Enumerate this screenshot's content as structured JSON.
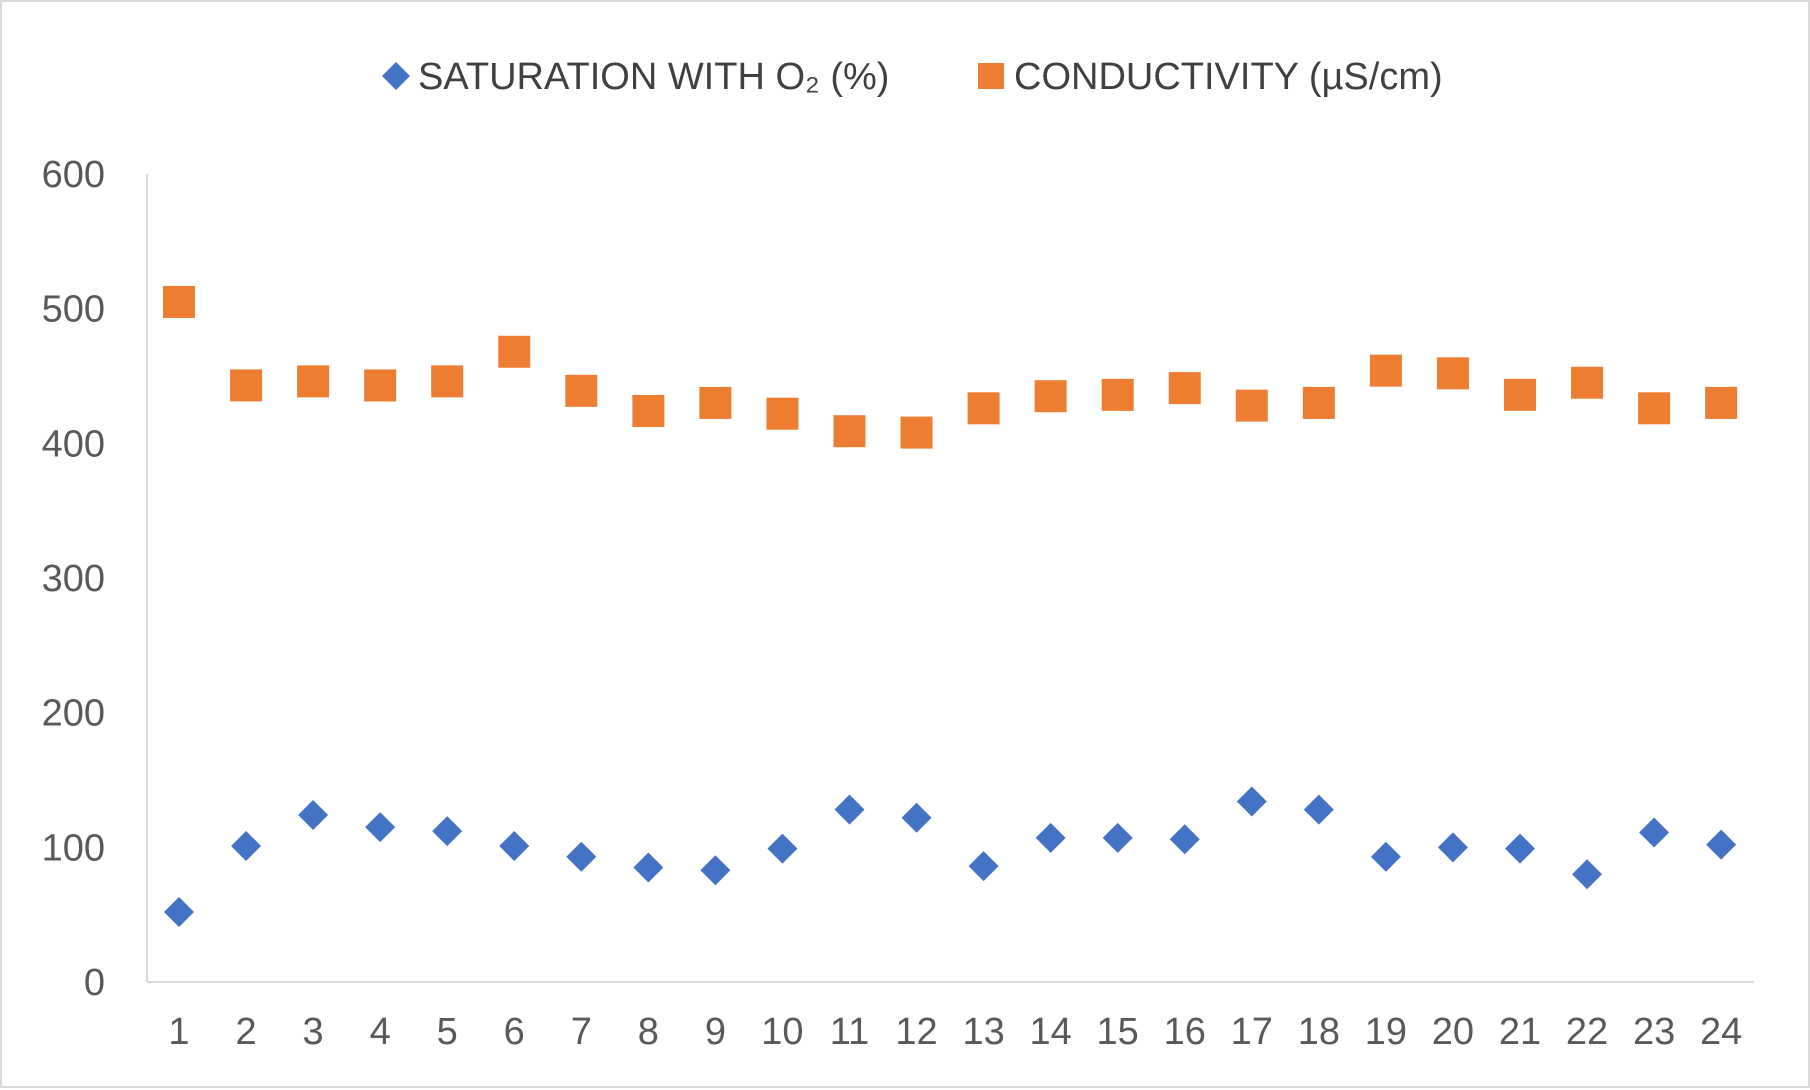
{
  "chart_data": {
    "type": "scatter",
    "x": [
      1,
      2,
      3,
      4,
      5,
      6,
      7,
      8,
      9,
      10,
      11,
      12,
      13,
      14,
      15,
      16,
      17,
      18,
      19,
      20,
      21,
      22,
      23,
      24
    ],
    "categories": [
      "1",
      "2",
      "3",
      "4",
      "5",
      "6",
      "7",
      "8",
      "9",
      "10",
      "11",
      "12",
      "13",
      "14",
      "15",
      "16",
      "17",
      "18",
      "19",
      "20",
      "21",
      "22",
      "23",
      "24"
    ],
    "series": [
      {
        "name": "SATURATION WITH O₂ (%)",
        "marker": "diamond",
        "color": "#4472C4",
        "values": [
          52,
          101,
          124,
          115,
          112,
          101,
          93,
          85,
          83,
          99,
          128,
          122,
          86,
          107,
          107,
          106,
          134,
          128,
          93,
          100,
          99,
          80,
          111,
          102
        ]
      },
      {
        "name": "CONDUCTIVITY (µS/cm)",
        "marker": "square",
        "color": "#ED7D31",
        "values": [
          505,
          443,
          446,
          443,
          446,
          468,
          439,
          424,
          430,
          422,
          409,
          408,
          426,
          435,
          436,
          441,
          428,
          430,
          454,
          452,
          436,
          445,
          426,
          430
        ]
      }
    ],
    "yticks": [
      "0",
      "100",
      "200",
      "300",
      "400",
      "500",
      "600"
    ],
    "ylim": [
      0,
      600
    ],
    "xlabel": "",
    "ylabel": "",
    "title": "",
    "grid": false,
    "legend_position": "top"
  }
}
